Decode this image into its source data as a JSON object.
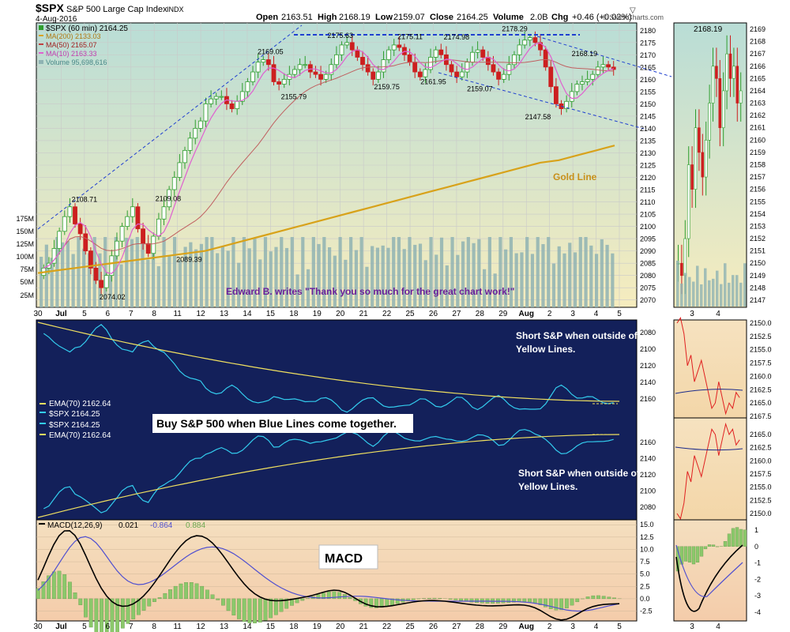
{
  "header": {
    "symbol": "$SPX",
    "name": "S&P 500 Large Cap Index",
    "exchange": "INDX",
    "date": "4-Aug-2016",
    "open_label": "Open",
    "open": "2163.51",
    "high_label": "High",
    "high": "2168.19",
    "low_label": "Low",
    "low": "2159.07",
    "close_label": "Close",
    "close": "2164.25",
    "volume_label": "Volume",
    "volume": "2.0B",
    "chg_label": "Chg",
    "chg": "+0.46 (+0.02%)",
    "brand": "© StockCharts.com"
  },
  "legend": {
    "price": "$SPX (60 min) 2164.25",
    "ma200": "MA(200) 2133.03",
    "ma50": "MA(50) 2165.07",
    "ma10": "MA(10) 2163.33",
    "volume": "Volume 95,698,616"
  },
  "annotations": {
    "quote": "Edward B. writes \"Thank you so much for the great chart work!\"",
    "gold_line": "Gold Line",
    "buy_note": "Buy S&P 500 when Blue Lines come together.",
    "short_note_1": "Short S&P when outside of",
    "short_note_2": "Yellow Lines.",
    "macd_label": "MACD"
  },
  "mid_legend": {
    "ema_top": "EMA(70) 2162.64",
    "spx_top": "$SPX 2164.25",
    "spx_bot": "$SPX 2164.25",
    "ema_bot": "EMA(70) 2162.64"
  },
  "macd_legend": {
    "label": "MACD(12,26,9)",
    "macd": "0.021",
    "signal": "-0.864",
    "hist": "0.884"
  },
  "colors": {
    "bull": "#2e9e2e",
    "bear": "#cc1f1f",
    "ma200": "#d8a21a",
    "ma50": "#c04040",
    "ma10": "#e060d0",
    "volume": "#8fb3b3",
    "trend": "#1f3fd0",
    "navy": "#13205a",
    "cyan": "#33ccee",
    "yellow": "#f0e060",
    "macd": "#000000",
    "signal": "#5050d0",
    "hist": "#8bc86b"
  },
  "chart_data": {
    "type": "line",
    "title": "$SPX S&P 500 Large Cap Index INDX (60 min)",
    "price_axis": [
      2070,
      2075,
      2080,
      2085,
      2090,
      2095,
      2100,
      2105,
      2110,
      2115,
      2120,
      2125,
      2130,
      2135,
      2140,
      2145,
      2150,
      2155,
      2160,
      2165,
      2170,
      2175,
      2180
    ],
    "price_ylim": [
      2067,
      2183
    ],
    "volume_axis": [
      "25M",
      "50M",
      "75M",
      "100M",
      "125M",
      "150M",
      "175M"
    ],
    "x_labels": [
      "30",
      "Jul",
      "5",
      "6",
      "7",
      "8",
      "11",
      "12",
      "13",
      "14",
      "15",
      "18",
      "19",
      "20",
      "21",
      "22",
      "25",
      "26",
      "27",
      "28",
      "29",
      "Aug",
      "2",
      "3",
      "4",
      "5"
    ],
    "price_labels": [
      {
        "label": "2108.71",
        "x": 2,
        "y": 2108.71
      },
      {
        "label": "2074.02",
        "x": 3.2,
        "y": 2074.02
      },
      {
        "label": "2109.08",
        "x": 5.6,
        "y": 2109.08
      },
      {
        "label": "2089.39",
        "x": 6.5,
        "y": 2089.39
      },
      {
        "label": "2169.05",
        "x": 10,
        "y": 2169.05
      },
      {
        "label": "2155.79",
        "x": 11,
        "y": 2155.79
      },
      {
        "label": "2175.63",
        "x": 13,
        "y": 2175.63
      },
      {
        "label": "2159.75",
        "x": 15,
        "y": 2159.75
      },
      {
        "label": "2175.11",
        "x": 16,
        "y": 2175.11
      },
      {
        "label": "2161.95",
        "x": 17,
        "y": 2161.95
      },
      {
        "label": "2174.98",
        "x": 18,
        "y": 2174.98
      },
      {
        "label": "2159.07",
        "x": 19,
        "y": 2159.07
      },
      {
        "label": "2178.29",
        "x": 20.5,
        "y": 2178.29
      },
      {
        "label": "2147.58",
        "x": 21.5,
        "y": 2147.58
      },
      {
        "label": "2168.19",
        "x": 23.5,
        "y": 2168.19
      }
    ],
    "closes": [
      2083,
      2085,
      2091,
      2098,
      2104,
      2108,
      2101,
      2097,
      2090,
      2083,
      2078,
      2075,
      2080,
      2088,
      2094,
      2100,
      2104,
      2108,
      2099,
      2093,
      2089,
      2096,
      2103,
      2108,
      2115,
      2120,
      2126,
      2131,
      2136,
      2140,
      2143,
      2150,
      2152,
      2153,
      2153,
      2150,
      2148,
      2151,
      2155,
      2159,
      2163,
      2167,
      2168,
      2166,
      2159,
      2158,
      2160,
      2162,
      2164,
      2166,
      2166,
      2163,
      2162,
      2160,
      2162,
      2166,
      2170,
      2174,
      2175,
      2172,
      2169,
      2166,
      2163,
      2160,
      2163,
      2168,
      2172,
      2174,
      2173,
      2170,
      2167,
      2163,
      2161,
      2164,
      2169,
      2172,
      2170,
      2166,
      2163,
      2161,
      2163,
      2167,
      2171,
      2172,
      2169,
      2166,
      2163,
      2160,
      2162,
      2166,
      2170,
      2174,
      2176,
      2177,
      2175,
      2172,
      2165,
      2157,
      2150,
      2148,
      2151,
      2155,
      2158,
      2159,
      2160,
      2162,
      2165,
      2166,
      2165,
      2164
    ],
    "ma200": [
      2081,
      2082,
      2083,
      2084,
      2085,
      2086,
      2087,
      2088,
      2089,
      2090,
      2092,
      2094,
      2096,
      2098,
      2100,
      2102,
      2104,
      2106,
      2108,
      2110,
      2112,
      2114,
      2116,
      2118,
      2120,
      2122,
      2124,
      2126,
      2127,
      2129,
      2131,
      2133
    ],
    "mid_ema": [
      2160,
      2160,
      2161,
      2161,
      2162,
      2162,
      2162,
      2163,
      2163,
      2163,
      2163,
      2163,
      2163,
      2163,
      2163,
      2163
    ],
    "macd_axis": [
      15.0,
      12.5,
      10.0,
      7.5,
      5.0,
      2.5,
      0.0,
      -2.5
    ],
    "macd_ylim": [
      -4.5,
      16
    ],
    "right_panel": {
      "x_labels": [
        "3",
        "4"
      ],
      "price_axis": [
        2147,
        2148,
        2149,
        2150,
        2151,
        2152,
        2153,
        2154,
        2155,
        2156,
        2157,
        2158,
        2159,
        2160,
        2161,
        2162,
        2163,
        2164,
        2165,
        2166,
        2167,
        2168,
        2169
      ],
      "high_label": "2168.19",
      "mid_axis_top": [
        2150.0,
        2152.5,
        2155.0,
        2157.5,
        2160.0,
        2162.5,
        2165.0,
        2167.5
      ],
      "mid_axis_bot": [
        2165.0,
        2162.5,
        2160.0,
        2157.5,
        2155.0,
        2152.5,
        2150.0
      ],
      "macd_axis": [
        1,
        0,
        -1,
        -2,
        -3,
        -4
      ]
    }
  }
}
